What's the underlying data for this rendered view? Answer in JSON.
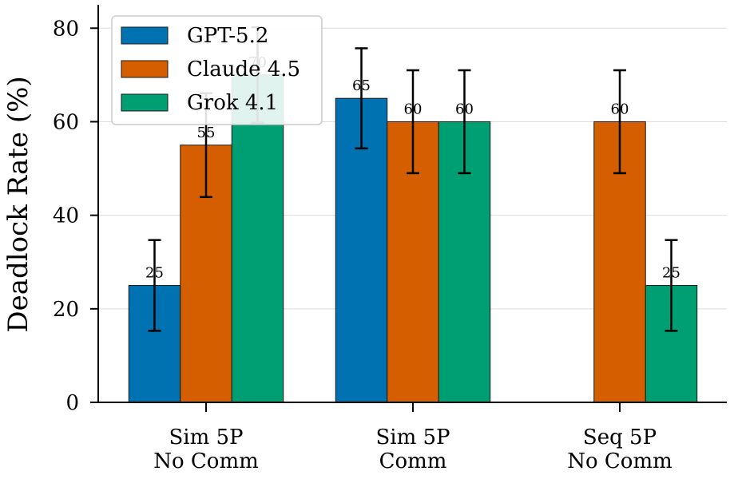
{
  "chart_data": {
    "type": "bar",
    "ylabel": "Deadlock Rate (%)",
    "xlabel": "",
    "ylim": [
      0,
      85
    ],
    "yticks": [
      0,
      20,
      40,
      60,
      80
    ],
    "grid": "y",
    "legend_position": "top-left",
    "categories": [
      [
        "Sim 5P",
        "No Comm"
      ],
      [
        "Sim 5P",
        "Comm"
      ],
      [
        "Seq 5P",
        "No Comm"
      ]
    ],
    "series": [
      {
        "name": "GPT-5.2",
        "color": "#0072B2",
        "values": [
          25,
          65,
          0
        ],
        "err": [
          9.7,
          10.7,
          0
        ],
        "labels": [
          "25",
          "65",
          ""
        ]
      },
      {
        "name": "Claude 4.5",
        "color": "#D55E00",
        "values": [
          55,
          60,
          60
        ],
        "err": [
          11.1,
          11.0,
          11.0
        ],
        "labels": [
          "55",
          "60",
          "60"
        ]
      },
      {
        "name": "Grok 4.1",
        "color": "#009E73",
        "values": [
          70,
          60,
          25
        ],
        "err": [
          10.2,
          11.0,
          9.7
        ],
        "labels": [
          "70",
          "60",
          "25"
        ]
      }
    ]
  }
}
